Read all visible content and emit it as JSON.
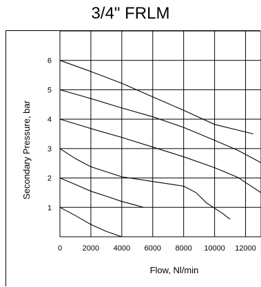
{
  "title": "3/4\" FRLM",
  "chart_data": {
    "type": "line",
    "title": "3/4\" FRLM",
    "xlabel": "Flow, Nl/min",
    "ylabel": "Secondary Pressure, bar",
    "xlim": [
      0,
      13000
    ],
    "ylim": [
      0,
      7
    ],
    "x_ticks": [
      "0",
      "2000",
      "4000",
      "6000",
      "8000",
      "10000",
      "12000"
    ],
    "y_ticks": [
      "1",
      "2",
      "3",
      "4",
      "5",
      "6"
    ],
    "x_gridlines": [
      0,
      2000,
      4000,
      6000,
      8000,
      10000,
      12000,
      13000
    ],
    "y_gridlines": [
      0,
      1,
      2,
      3,
      4,
      5,
      6,
      7
    ],
    "grid": true,
    "series": [
      {
        "x": [
          0,
          2000,
          4000,
          6000,
          8000,
          10000,
          12500
        ],
        "y": [
          6.0,
          5.62,
          5.22,
          4.76,
          4.3,
          3.82,
          3.5
        ]
      },
      {
        "x": [
          0,
          2000,
          4000,
          6000,
          8000,
          10000,
          11500,
          13000
        ],
        "y": [
          5.0,
          4.7,
          4.38,
          4.08,
          3.72,
          3.28,
          2.94,
          2.52
        ]
      },
      {
        "x": [
          0,
          2000,
          4000,
          6000,
          8000,
          10000,
          11500,
          13000
        ],
        "y": [
          4.0,
          3.68,
          3.38,
          3.05,
          2.72,
          2.35,
          2.02,
          1.5
        ]
      },
      {
        "x": [
          0,
          1000,
          2000,
          4000,
          6000,
          8000,
          8800,
          9500,
          10500,
          11000
        ],
        "y": [
          3.0,
          2.66,
          2.38,
          2.04,
          1.88,
          1.72,
          1.5,
          1.14,
          0.8,
          0.6
        ]
      },
      {
        "x": [
          0,
          1000,
          2000,
          3000,
          4000,
          5000,
          5400
        ],
        "y": [
          2.0,
          1.78,
          1.55,
          1.38,
          1.2,
          1.06,
          1.0
        ]
      },
      {
        "x": [
          0,
          1000,
          2000,
          3000,
          4000
        ],
        "y": [
          1.0,
          0.72,
          0.42,
          0.18,
          0.0
        ]
      }
    ]
  }
}
